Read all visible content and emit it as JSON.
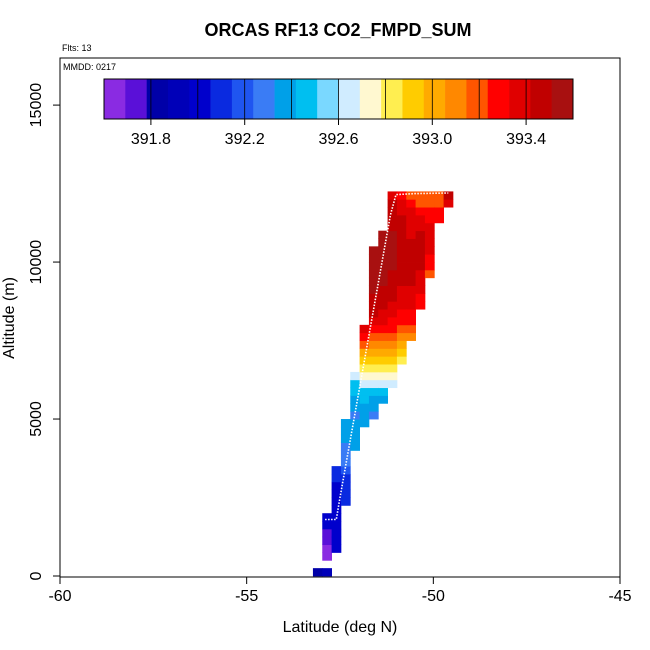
{
  "chart_data": {
    "type": "heatmap",
    "title": "ORCAS RF13 CO2_FMPD_SUM",
    "flights_label": "Flts: 13",
    "date_label": "MMDD: 0217",
    "xlabel": "Latitude (deg N)",
    "ylabel": "Altitude (m)",
    "xlim": [
      -60,
      -45
    ],
    "ylim": [
      0,
      16500
    ],
    "x_ticks": [
      -60,
      -55,
      -50,
      -45
    ],
    "y_ticks": [
      0,
      5000,
      10000,
      15000
    ],
    "grid": false,
    "colorbar": {
      "placement": "top",
      "range": [
        391.6,
        393.6
      ],
      "ticks": [
        391.8,
        392.2,
        392.6,
        393.0,
        393.4
      ],
      "tick_labels": [
        "391.8",
        "392.2",
        "392.6",
        "393.0",
        "393.4"
      ],
      "colors": [
        "#8a2be2",
        "#5a10d8",
        "#0000a8",
        "#0000b8",
        "#0000cc",
        "#0a2ae0",
        "#1f55f0",
        "#3a7cf5",
        "#00a0e8",
        "#00bff0",
        "#7ad8ff",
        "#d0ecff",
        "#fff8d0",
        "#ffee50",
        "#ffcc00",
        "#ffaa00",
        "#ff8800",
        "#ff5500",
        "#ff0000",
        "#e00000",
        "#c00000",
        "#a81010"
      ]
    },
    "bins": {
      "lat_step": 0.25,
      "alt_step": 250,
      "columns": [
        {
          "lat": -53.1,
          "alt_lo": 0,
          "alt_hi": 250,
          "values": [
            391.8
          ]
        },
        {
          "lat": -52.85,
          "alt_lo": 0,
          "alt_hi": 250,
          "values": [
            391.9
          ]
        },
        {
          "lat": -52.85,
          "alt_lo": 500,
          "alt_hi": 2000,
          "values": [
            391.6,
            391.6,
            391.7,
            391.7,
            392.0,
            392.0
          ]
        },
        {
          "lat": -52.6,
          "alt_lo": 750,
          "alt_hi": 2000,
          "values": [
            392.0,
            392.0,
            392.0,
            392.0,
            392.0
          ]
        },
        {
          "lat": -52.6,
          "alt_lo": 2000,
          "alt_hi": 3500,
          "values": [
            392.0,
            392.0,
            392.0,
            392.0,
            392.1,
            392.1
          ]
        },
        {
          "lat": -52.35,
          "alt_lo": 2250,
          "alt_hi": 3500,
          "values": [
            392.1,
            392.1,
            392.1,
            392.1,
            392.2
          ]
        },
        {
          "lat": -52.35,
          "alt_lo": 3500,
          "alt_hi": 5000,
          "values": [
            392.3,
            392.3,
            392.3,
            392.4,
            392.4,
            392.4
          ]
        },
        {
          "lat": -52.1,
          "alt_lo": 4000,
          "alt_hi": 5000,
          "values": [
            392.4,
            392.4,
            392.4,
            392.4
          ]
        },
        {
          "lat": -52.1,
          "alt_lo": 5000,
          "alt_hi": 6500,
          "values": [
            392.3,
            392.4,
            392.4,
            392.5,
            392.5,
            392.6
          ]
        },
        {
          "lat": -51.85,
          "alt_lo": 4750,
          "alt_hi": 6500,
          "values": [
            392.4,
            392.4,
            392.4,
            392.5,
            392.5,
            392.6,
            392.7
          ]
        },
        {
          "lat": -51.85,
          "alt_lo": 6500,
          "alt_hi": 8000,
          "values": [
            392.8,
            392.9,
            393.0,
            393.2,
            393.3,
            393.4
          ]
        },
        {
          "lat": -51.6,
          "alt_lo": 5000,
          "alt_hi": 6750,
          "values": [
            392.3,
            392.4,
            392.4,
            392.5,
            392.6,
            392.7,
            392.8
          ]
        },
        {
          "lat": -51.6,
          "alt_lo": 6750,
          "alt_hi": 10500,
          "values": [
            392.9,
            393.0,
            393.1,
            393.2,
            393.3,
            393.4,
            393.5,
            393.5,
            393.5,
            393.6,
            393.6,
            393.6,
            393.6,
            393.6,
            393.6
          ]
        },
        {
          "lat": -51.35,
          "alt_lo": 5500,
          "alt_hi": 7250,
          "values": [
            392.4,
            392.5,
            392.6,
            392.7,
            392.8,
            392.9,
            393.0
          ]
        },
        {
          "lat": -51.35,
          "alt_lo": 7250,
          "alt_hi": 11000,
          "values": [
            393.1,
            393.2,
            393.3,
            393.4,
            393.4,
            393.5,
            393.5,
            393.5,
            393.6,
            393.6,
            393.6,
            393.6,
            393.6,
            393.6,
            393.6
          ]
        },
        {
          "lat": -51.1,
          "alt_lo": 6000,
          "alt_hi": 7500,
          "values": [
            392.6,
            392.7,
            392.8,
            392.9,
            393.0,
            393.1
          ]
        },
        {
          "lat": -51.1,
          "alt_lo": 7500,
          "alt_hi": 12250,
          "values": [
            393.2,
            393.3,
            393.3,
            393.4,
            393.4,
            393.5,
            393.5,
            393.5,
            393.5,
            393.6,
            393.6,
            393.6,
            393.6,
            393.6,
            393.5,
            393.5,
            393.5,
            393.5,
            393.4
          ]
        },
        {
          "lat": -50.85,
          "alt_lo": 6750,
          "alt_hi": 8000,
          "values": [
            392.8,
            392.9,
            393.0,
            393.1,
            393.2
          ]
        },
        {
          "lat": -50.85,
          "alt_lo": 8000,
          "alt_hi": 12250,
          "values": [
            393.3,
            393.3,
            393.4,
            393.4,
            393.4,
            393.5,
            393.5,
            393.5,
            393.5,
            393.5,
            393.5,
            393.5,
            393.5,
            393.5,
            393.4,
            393.4,
            393.3
          ]
        },
        {
          "lat": -50.6,
          "alt_lo": 7500,
          "alt_hi": 12250,
          "values": [
            393.1,
            393.2,
            393.3,
            393.3,
            393.4,
            393.4,
            393.4,
            393.5,
            393.5,
            393.5,
            393.5,
            393.5,
            393.5,
            393.4,
            393.4,
            393.4,
            393.4,
            393.3,
            393.2
          ]
        },
        {
          "lat": -50.35,
          "alt_lo": 8500,
          "alt_hi": 12250,
          "values": [
            393.3,
            393.3,
            393.4,
            393.4,
            393.4,
            393.5,
            393.5,
            393.5,
            393.5,
            393.5,
            393.4,
            393.4,
            393.3,
            393.2,
            393.2
          ]
        },
        {
          "lat": -50.1,
          "alt_lo": 9500,
          "alt_hi": 12250,
          "values": [
            393.2,
            393.3,
            393.3,
            393.4,
            393.4,
            393.4,
            393.4,
            393.3,
            393.3,
            393.2,
            393.2
          ]
        },
        {
          "lat": -49.85,
          "alt_lo": 11250,
          "alt_hi": 12250,
          "values": [
            393.3,
            393.3,
            393.2,
            393.2
          ]
        },
        {
          "lat": -49.6,
          "alt_lo": 11750,
          "alt_hi": 12250,
          "values": [
            393.4,
            393.5
          ]
        }
      ]
    },
    "flight_track": [
      {
        "lat": -52.9,
        "alt": 1800
      },
      {
        "lat": -52.6,
        "alt": 1800
      },
      {
        "lat": -52.5,
        "alt": 2500
      },
      {
        "lat": -52.35,
        "alt": 3500
      },
      {
        "lat": -52.2,
        "alt": 4500
      },
      {
        "lat": -52.05,
        "alt": 5500
      },
      {
        "lat": -51.9,
        "alt": 6500
      },
      {
        "lat": -51.75,
        "alt": 7500
      },
      {
        "lat": -51.6,
        "alt": 8500
      },
      {
        "lat": -51.45,
        "alt": 9500
      },
      {
        "lat": -51.3,
        "alt": 10500
      },
      {
        "lat": -51.15,
        "alt": 11500
      },
      {
        "lat": -51.0,
        "alt": 12150
      },
      {
        "lat": -50.5,
        "alt": 12180
      },
      {
        "lat": -49.6,
        "alt": 12200
      }
    ]
  }
}
